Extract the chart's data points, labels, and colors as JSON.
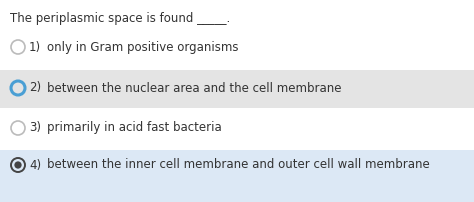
{
  "title": "The periplasmic space is found _____.",
  "options": [
    {
      "num": "1)",
      "text": "only in Gram positive organisms",
      "selected": false,
      "selected_filled": false,
      "highlighted": false
    },
    {
      "num": "2)",
      "text": "between the nuclear area and the cell membrane",
      "selected": true,
      "selected_filled": false,
      "highlighted": true
    },
    {
      "num": "3)",
      "text": "primarily in acid fast bacteria",
      "selected": false,
      "selected_filled": false,
      "highlighted": false
    },
    {
      "num": "4)",
      "text": "between the inner cell membrane and outer cell wall membrane",
      "selected": true,
      "selected_filled": true,
      "highlighted": true
    }
  ],
  "bg_color": "#ffffff",
  "highlight_color_2": "#e4e4e4",
  "highlight_color_4": "#dce8f5",
  "title_fontsize": 8.5,
  "option_fontsize": 8.5,
  "circle_color_empty": "#bbbbbb",
  "circle_color_blue": "#4a9fd4",
  "circle_color_filled": "#444444",
  "text_color": "#333333"
}
